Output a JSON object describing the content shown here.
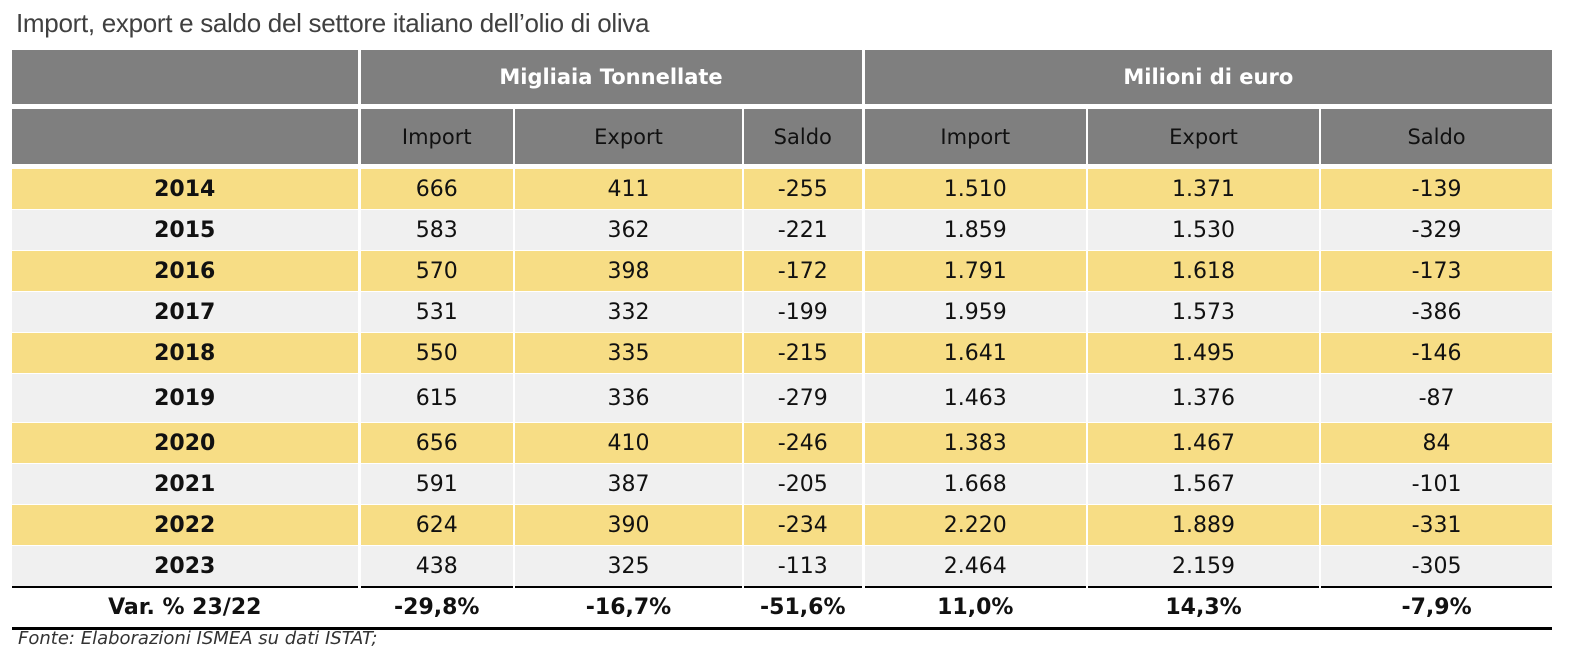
{
  "title": "Import, export e saldo del settore italiano dell’olio di oliva",
  "groups": {
    "quantity": "Migliaia Tonnellate",
    "value": "Milioni di euro"
  },
  "columns": [
    "Import",
    "Export",
    "Saldo",
    "Import",
    "Export",
    "Saldo"
  ],
  "rows": [
    {
      "year": "2014",
      "cells": [
        "666",
        "411",
        "-255",
        "1.510",
        "1.371",
        "-139"
      ]
    },
    {
      "year": "2015",
      "cells": [
        "583",
        "362",
        "-221",
        "1.859",
        "1.530",
        "-329"
      ]
    },
    {
      "year": "2016",
      "cells": [
        "570",
        "398",
        "-172",
        "1.791",
        "1.618",
        "-173"
      ]
    },
    {
      "year": "2017",
      "cells": [
        "531",
        "332",
        "-199",
        "1.959",
        "1.573",
        "-386"
      ]
    },
    {
      "year": "2018",
      "cells": [
        "550",
        "335",
        "-215",
        "1.641",
        "1.495",
        "-146"
      ]
    },
    {
      "year": "2019",
      "cells": [
        "615",
        "336",
        "-279",
        "1.463",
        "1.376",
        "-87"
      ]
    },
    {
      "year": "2020",
      "cells": [
        "656",
        "410",
        "-246",
        "1.383",
        "1.467",
        "84"
      ]
    },
    {
      "year": "2021",
      "cells": [
        "591",
        "387",
        "-205",
        "1.668",
        "1.567",
        "-101"
      ]
    },
    {
      "year": "2022",
      "cells": [
        "624",
        "390",
        "-234",
        "2.220",
        "1.889",
        "-331"
      ]
    },
    {
      "year": "2023",
      "cells": [
        "438",
        "325",
        "-113",
        "2.464",
        "2.159",
        "-305"
      ]
    }
  ],
  "summary": {
    "label": "Var. % 23/22",
    "cells": [
      "-29,8%",
      "-16,7%",
      "-51,6%",
      "11,0%",
      "14,3%",
      "-7,9%"
    ]
  },
  "source": "Fonte: Elaborazioni ISMEA su dati ISTAT;",
  "colors": {
    "header_bg": "#7f7f7f",
    "band_yellow": "#f7dd85",
    "band_grey": "#f0f0f0"
  }
}
